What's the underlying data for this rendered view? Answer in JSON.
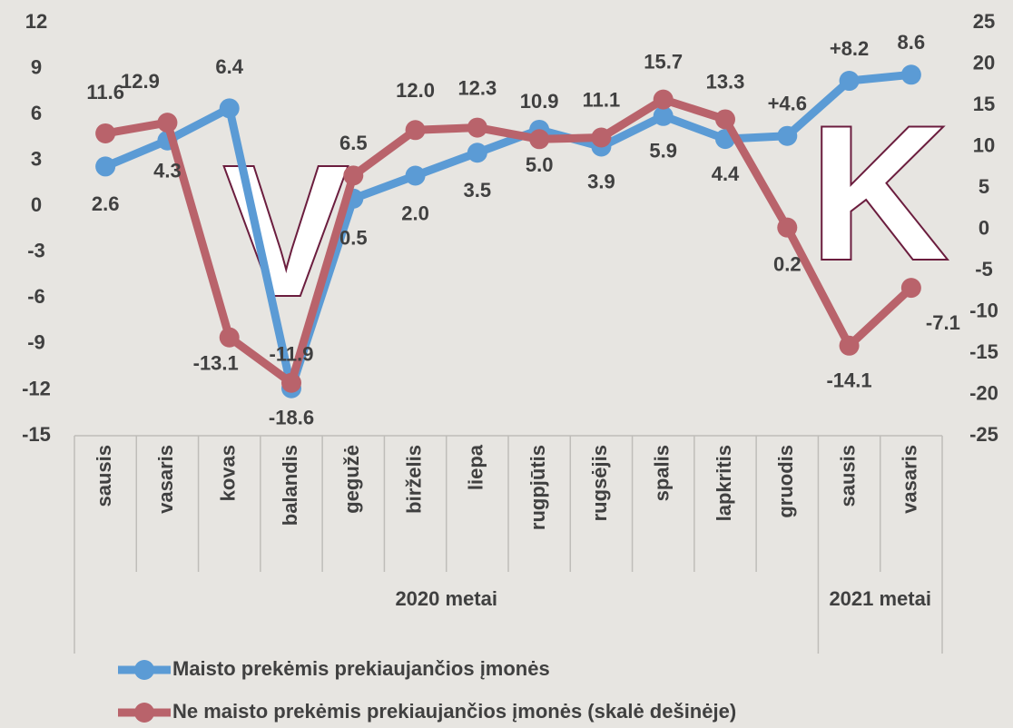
{
  "chart_data": {
    "type": "line",
    "categories": [
      "sausis",
      "vasaris",
      "kovas",
      "balandis",
      "gegužė",
      "birželis",
      "liepa",
      "rugpjūtis",
      "rugsėjis",
      "spalis",
      "lapkritis",
      "gruodis",
      "sausis",
      "vasaris"
    ],
    "x_groups": [
      "2020 metai",
      "2021 metai"
    ],
    "series": [
      {
        "name": "Maisto prekėmis prekiaujančios įmonės",
        "color": "#5b9bd5",
        "axis": "y",
        "values": [
          2.6,
          4.3,
          6.4,
          -11.9,
          0.5,
          2.0,
          3.5,
          5.0,
          3.9,
          5.9,
          4.4,
          4.6,
          8.2,
          8.6
        ],
        "value_labels": [
          "2.6",
          "4.3",
          "6.4",
          "-11.9",
          "0.5",
          "2.0",
          "3.5",
          "5.0",
          "3.9",
          "5.9",
          "4.4",
          "+4.6",
          "+8.2",
          "8.6"
        ]
      },
      {
        "name": "Ne maisto prekėmis prekiaujančios įmonės (skalė dešinėje)",
        "color": "#b9636b",
        "axis": "y2",
        "values": [
          11.6,
          12.9,
          -13.1,
          -18.6,
          6.5,
          12.0,
          12.3,
          10.9,
          11.1,
          15.7,
          13.3,
          0.2,
          -14.1,
          -7.1
        ],
        "value_labels": [
          "11.6",
          "12.9",
          "-13.1",
          "-18.6",
          "6.5",
          "12.0",
          "12.3",
          "10.9",
          "11.1",
          "15.7",
          "13.3",
          "0.2",
          "-14.1",
          "-7.1"
        ]
      }
    ],
    "ylim": [
      -15,
      12
    ],
    "yticks": [
      -15,
      -12,
      -9,
      -6,
      -3,
      0,
      3,
      6,
      9,
      12
    ],
    "y2lim": [
      -25,
      25
    ],
    "y2ticks": [
      -25,
      -20,
      -15,
      -10,
      -5,
      0,
      5,
      10,
      15,
      20,
      25
    ],
    "annotations": [
      "V",
      "K"
    ],
    "grid": false
  }
}
